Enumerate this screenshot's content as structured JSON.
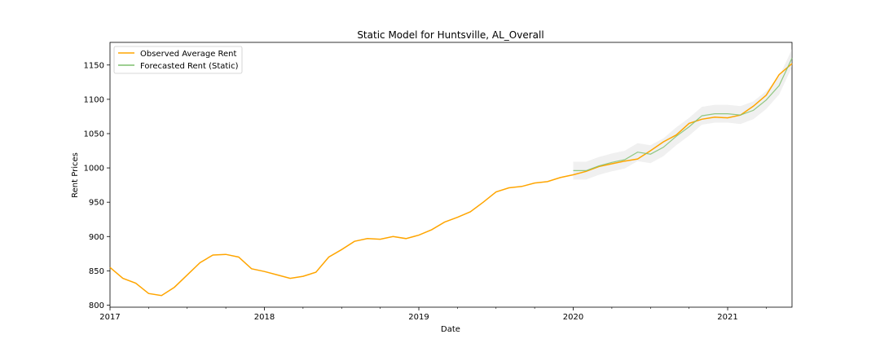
{
  "chart_data": {
    "type": "line",
    "title": "Static Model for Huntsville, AL_Overall",
    "xlabel": "Date",
    "ylabel": "Rent Prices",
    "xlim": [
      2017.0,
      2021.4167
    ],
    "ylim": [
      797,
      1183
    ],
    "x_ticks": [
      {
        "value": 2017,
        "label": "2017"
      },
      {
        "value": 2018,
        "label": "2018"
      },
      {
        "value": 2019,
        "label": "2019"
      },
      {
        "value": 2020,
        "label": "2020"
      },
      {
        "value": 2021,
        "label": "2021"
      }
    ],
    "y_ticks": [
      {
        "value": 800,
        "label": "800"
      },
      {
        "value": 850,
        "label": "850"
      },
      {
        "value": 900,
        "label": "900"
      },
      {
        "value": 950,
        "label": "950"
      },
      {
        "value": 1000,
        "label": "1000"
      },
      {
        "value": 1050,
        "label": "1050"
      },
      {
        "value": 1100,
        "label": "1100"
      },
      {
        "value": 1150,
        "label": "1150"
      }
    ],
    "grid": false,
    "legend_position": "top-left",
    "series": [
      {
        "name": "Observed Average Rent",
        "color": "#FFA500",
        "x": [
          2017.0,
          2017.0833,
          2017.1667,
          2017.25,
          2017.3333,
          2017.4167,
          2017.5,
          2017.5833,
          2017.6667,
          2017.75,
          2017.8333,
          2017.9167,
          2018.0,
          2018.0833,
          2018.1667,
          2018.25,
          2018.3333,
          2018.4167,
          2018.5,
          2018.5833,
          2018.6667,
          2018.75,
          2018.8333,
          2018.9167,
          2019.0,
          2019.0833,
          2019.1667,
          2019.25,
          2019.3333,
          2019.4167,
          2019.5,
          2019.5833,
          2019.6667,
          2019.75,
          2019.8333,
          2019.9167,
          2020.0,
          2020.0833,
          2020.1667,
          2020.25,
          2020.3333,
          2020.4167,
          2020.5,
          2020.5833,
          2020.6667,
          2020.75,
          2020.8333,
          2020.9167,
          2021.0,
          2021.0833,
          2021.1667,
          2021.25,
          2021.3333,
          2021.4167
        ],
        "values": [
          855,
          839,
          832,
          817,
          814,
          826,
          844,
          862,
          873,
          874,
          870,
          853,
          849,
          844,
          839,
          842,
          848,
          870,
          881,
          893,
          897,
          896,
          900,
          897,
          902,
          910,
          921,
          928,
          936,
          950,
          965,
          971,
          973,
          978,
          980,
          986,
          990,
          995,
          1002,
          1006,
          1010,
          1013,
          1025,
          1038,
          1048,
          1065,
          1071,
          1074,
          1073,
          1077,
          1090,
          1106,
          1136,
          1152
        ]
      },
      {
        "name": "Forecasted Rent (Static)",
        "color": "#7fbf6f",
        "x": [
          2020.0,
          2020.0833,
          2020.1667,
          2020.25,
          2020.3333,
          2020.4167,
          2020.5,
          2020.5833,
          2020.6667,
          2020.75,
          2020.8333,
          2020.9167,
          2021.0,
          2021.0833,
          2021.1667,
          2021.25,
          2021.3333,
          2021.4167
        ],
        "values": [
          996,
          996,
          1003,
          1008,
          1012,
          1023,
          1020,
          1030,
          1046,
          1060,
          1076,
          1079,
          1079,
          1077,
          1084,
          1099,
          1120,
          1160
        ],
        "ci_lower": [
          983,
          983,
          990,
          995,
          999,
          1010,
          1007,
          1017,
          1033,
          1047,
          1063,
          1066,
          1066,
          1064,
          1071,
          1086,
          1107,
          1147
        ],
        "ci_upper": [
          1009,
          1009,
          1016,
          1021,
          1025,
          1036,
          1033,
          1043,
          1059,
          1073,
          1089,
          1092,
          1092,
          1090,
          1097,
          1112,
          1133,
          1173
        ]
      }
    ]
  }
}
